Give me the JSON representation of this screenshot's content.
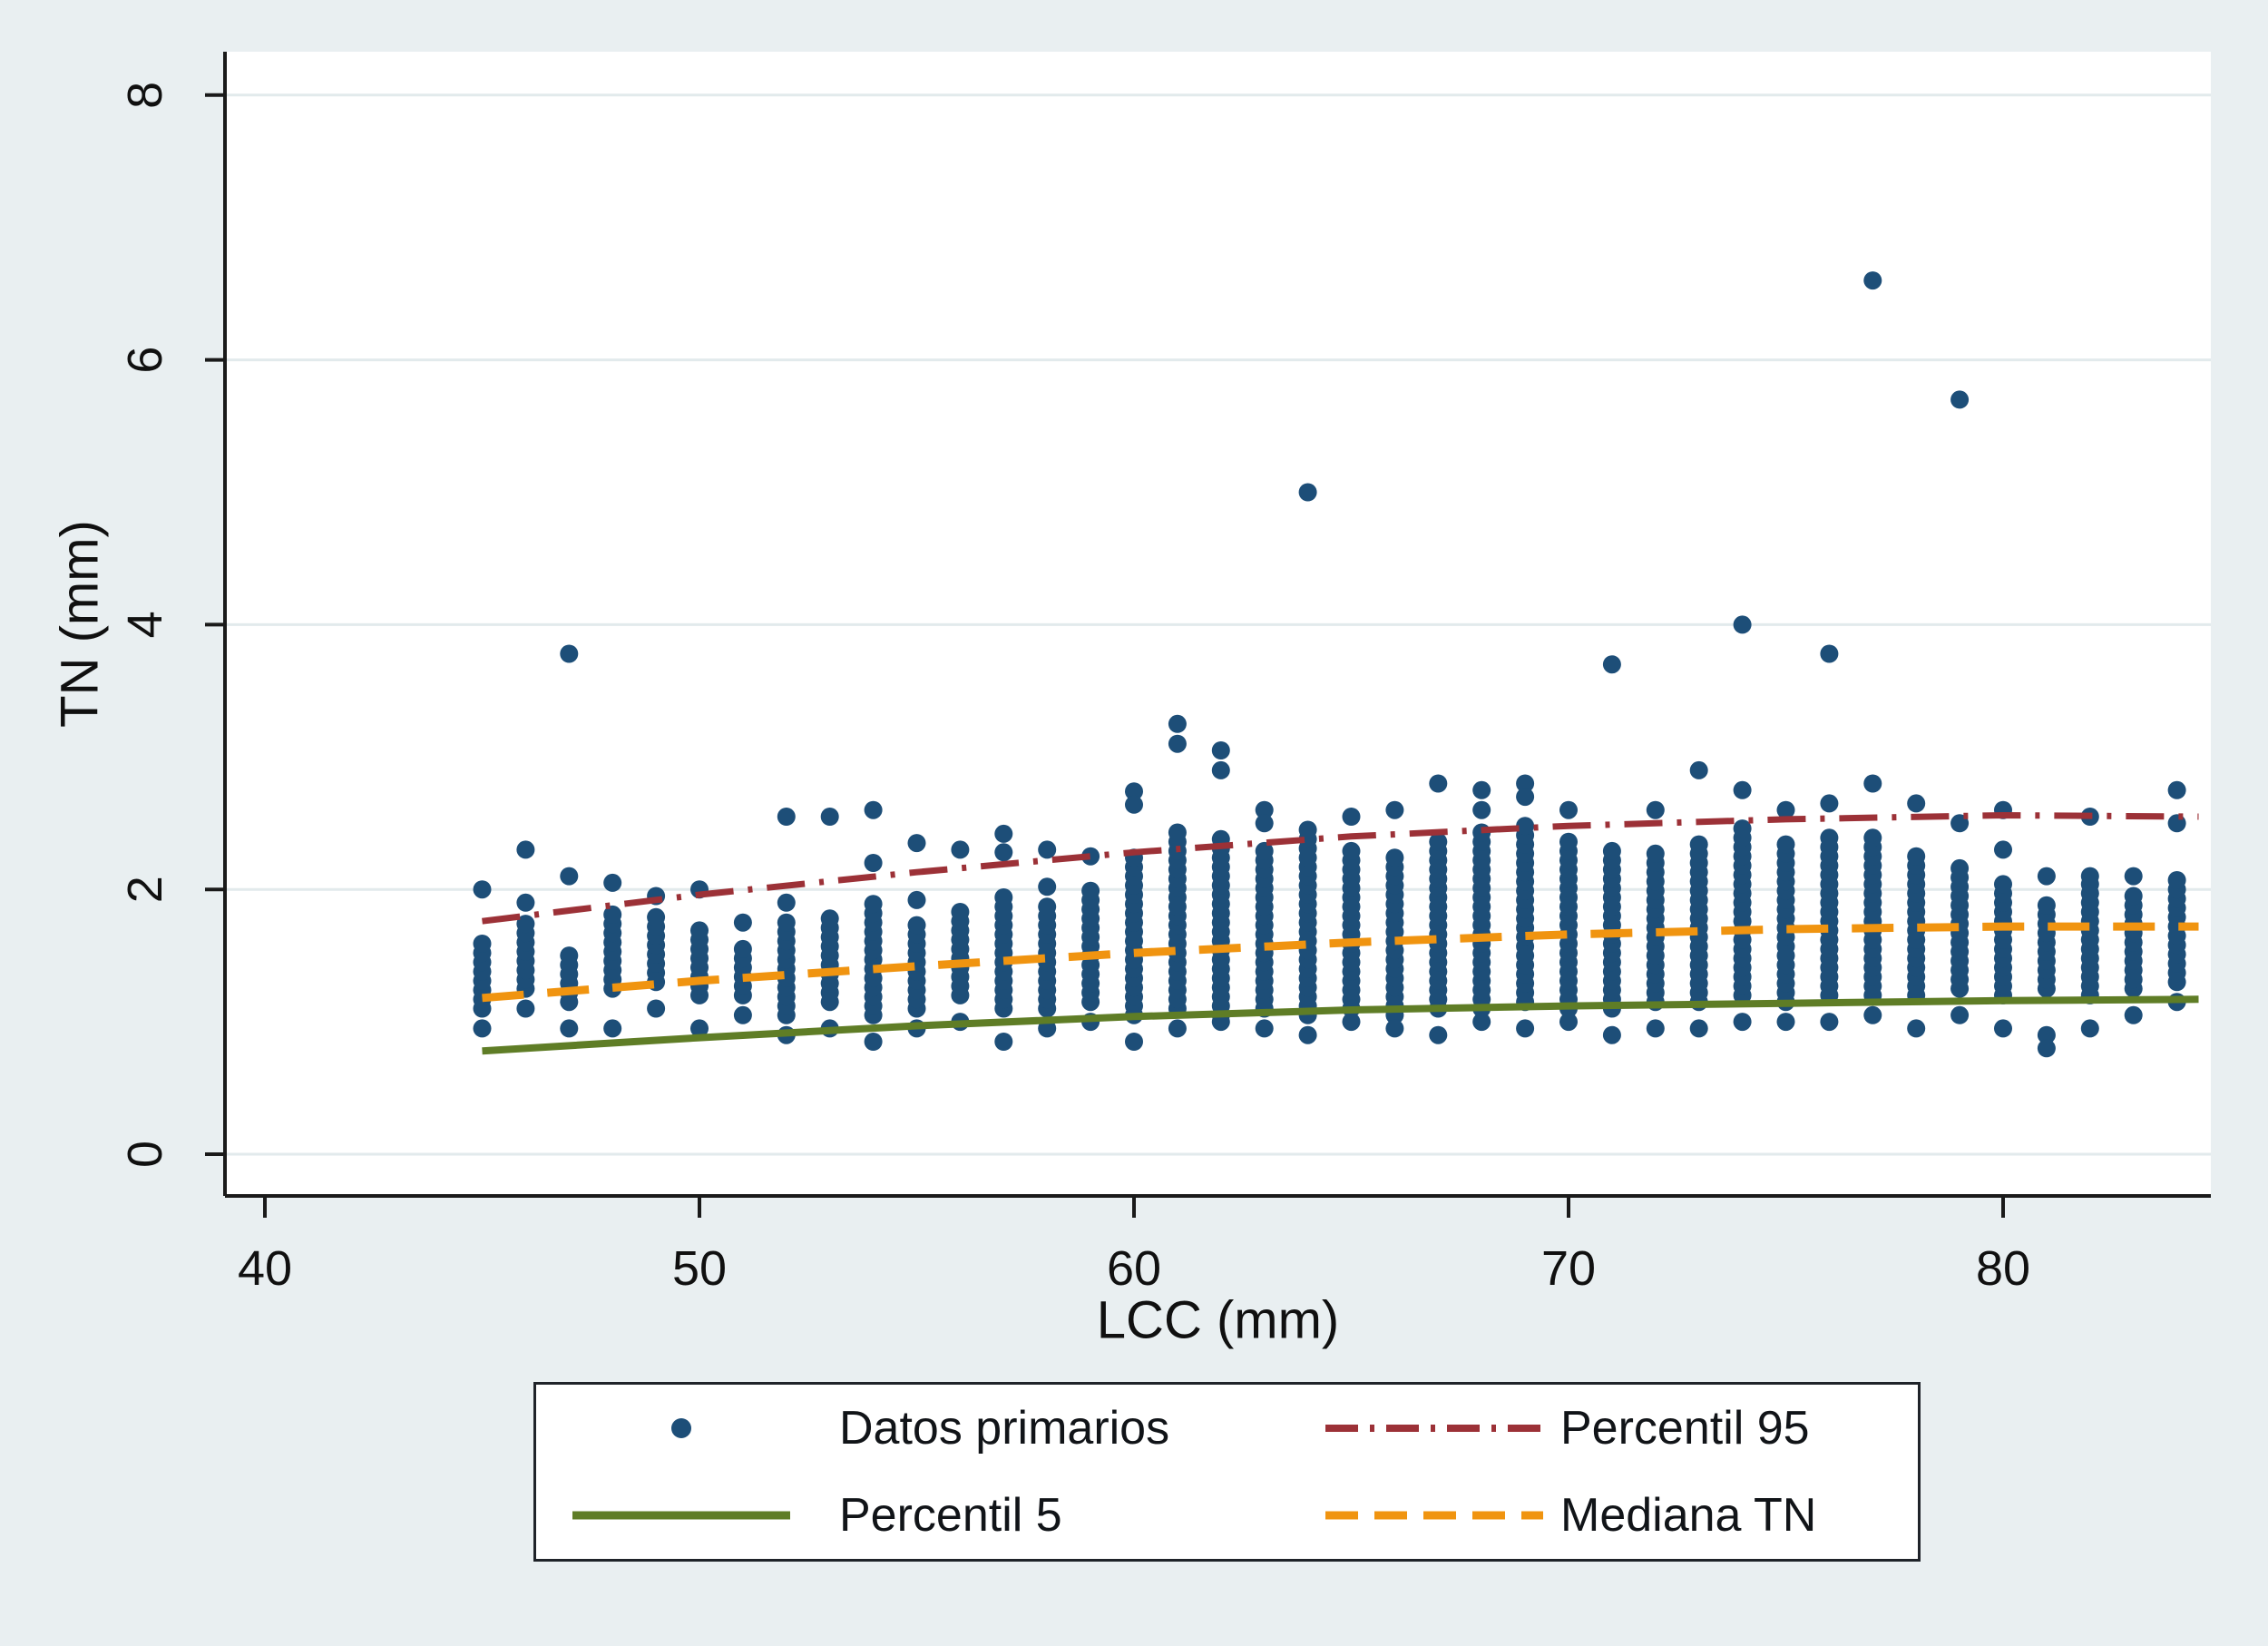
{
  "figure": {
    "background_color": "#e9eff1",
    "plot_background_color": "#ffffff",
    "gridline_color": "#e2eaec",
    "axis_color": "#1a1a1a",
    "text_color": "#101010"
  },
  "chart_data": {
    "type": "scatter",
    "title": "",
    "xlabel": "LCC (mm)",
    "ylabel": "TN (mm)",
    "xlim": [
      39.1,
      84.9
    ],
    "ylim": [
      -0.37,
      8.33
    ],
    "x_ticks": [
      40,
      50,
      60,
      70,
      80
    ],
    "y_ticks": [
      0,
      2,
      4,
      6,
      8
    ],
    "grid": "horizontal-light",
    "legend_position": "bottom-box",
    "marker_radius_px": 10,
    "series": [
      {
        "name": "Datos primarios",
        "type": "scatter",
        "color": "#1d4e78",
        "run_step": 0.07,
        "columns": [
          {
            "x": 45,
            "runs": [
              [
                1.1,
                1.6
              ]
            ],
            "pts": [
              2.0,
              0.95
            ]
          },
          {
            "x": 46,
            "runs": [
              [
                1.25,
                1.75
              ]
            ],
            "pts": [
              2.3,
              1.9,
              1.1
            ]
          },
          {
            "x": 47,
            "runs": [
              [
                1.15,
                1.55
              ]
            ],
            "pts": [
              3.78,
              2.1,
              0.95
            ]
          },
          {
            "x": 48,
            "runs": [
              [
                1.25,
                1.85
              ]
            ],
            "pts": [
              2.05,
              0.95
            ]
          },
          {
            "x": 49,
            "runs": [
              [
                1.3,
                1.8
              ]
            ],
            "pts": [
              1.95,
              1.1
            ]
          },
          {
            "x": 50,
            "runs": [
              [
                1.2,
                1.7
              ]
            ],
            "pts": [
              2.0,
              0.95
            ]
          },
          {
            "x": 51,
            "runs": [
              [
                1.2,
                1.6
              ]
            ],
            "pts": [
              1.75,
              1.05
            ]
          },
          {
            "x": 52,
            "runs": [
              [
                1.05,
                1.75
              ]
            ],
            "pts": [
              2.55,
              1.9,
              0.9
            ]
          },
          {
            "x": 53,
            "runs": [
              [
                1.15,
                1.8
              ]
            ],
            "pts": [
              2.55,
              0.95
            ]
          },
          {
            "x": 54,
            "runs": [
              [
                1.05,
                1.9
              ]
            ],
            "pts": [
              2.6,
              2.2,
              0.85
            ]
          },
          {
            "x": 55,
            "runs": [
              [
                1.1,
                1.75
              ]
            ],
            "pts": [
              2.35,
              1.92,
              0.95
            ]
          },
          {
            "x": 56,
            "runs": [
              [
                1.2,
                1.85
              ]
            ],
            "pts": [
              2.3,
              1.0
            ]
          },
          {
            "x": 57,
            "runs": [
              [
                1.1,
                2.0
              ]
            ],
            "pts": [
              2.42,
              2.28,
              0.85
            ]
          },
          {
            "x": 58,
            "runs": [
              [
                1.1,
                1.9
              ]
            ],
            "pts": [
              2.3,
              2.02,
              0.95
            ]
          },
          {
            "x": 59,
            "runs": [
              [
                1.15,
                2.0
              ]
            ],
            "pts": [
              2.25,
              1.0
            ]
          },
          {
            "x": 60,
            "runs": [
              [
                1.05,
                2.25
              ]
            ],
            "pts": [
              2.74,
              2.64,
              0.85
            ]
          },
          {
            "x": 61,
            "runs": [
              [
                1.1,
                2.45
              ]
            ],
            "pts": [
              3.25,
              3.1,
              0.95
            ]
          },
          {
            "x": 62,
            "runs": [
              [
                1.05,
                2.4
              ]
            ],
            "pts": [
              3.05,
              2.9,
              1.0
            ]
          },
          {
            "x": 63,
            "runs": [
              [
                1.1,
                2.3
              ]
            ],
            "pts": [
              2.6,
              2.5,
              0.95
            ]
          },
          {
            "x": 64,
            "runs": [
              [
                1.05,
                2.45
              ]
            ],
            "pts": [
              5.0,
              0.9
            ]
          },
          {
            "x": 65,
            "runs": [
              [
                1.1,
                2.35
              ]
            ],
            "pts": [
              2.55,
              1.0
            ]
          },
          {
            "x": 66,
            "runs": [
              [
                1.05,
                2.3
              ]
            ],
            "pts": [
              2.6,
              0.95
            ]
          },
          {
            "x": 67,
            "runs": [
              [
                1.1,
                2.4
              ]
            ],
            "pts": [
              2.8,
              0.9
            ]
          },
          {
            "x": 68,
            "runs": [
              [
                1.1,
                2.45
              ]
            ],
            "pts": [
              2.75,
              2.6,
              1.0
            ]
          },
          {
            "x": 69,
            "runs": [
              [
                1.15,
                2.5
              ]
            ],
            "pts": [
              2.8,
              2.7,
              0.95
            ]
          },
          {
            "x": 70,
            "runs": [
              [
                1.1,
                2.4
              ]
            ],
            "pts": [
              2.6,
              1.0
            ]
          },
          {
            "x": 71,
            "runs": [
              [
                1.1,
                2.35
              ]
            ],
            "pts": [
              3.7,
              0.9
            ]
          },
          {
            "x": 72,
            "runs": [
              [
                1.15,
                2.3
              ]
            ],
            "pts": [
              2.6,
              0.95
            ]
          },
          {
            "x": 73,
            "runs": [
              [
                1.15,
                2.4
              ]
            ],
            "pts": [
              2.9,
              0.95
            ]
          },
          {
            "x": 74,
            "runs": [
              [
                1.2,
                2.5
              ]
            ],
            "pts": [
              4.0,
              2.75,
              1.0
            ]
          },
          {
            "x": 75,
            "runs": [
              [
                1.15,
                2.35
              ]
            ],
            "pts": [
              2.6,
              1.0
            ]
          },
          {
            "x": 76,
            "runs": [
              [
                1.2,
                2.4
              ]
            ],
            "pts": [
              3.78,
              2.65,
              1.0
            ]
          },
          {
            "x": 77,
            "runs": [
              [
                1.2,
                2.45
              ]
            ],
            "pts": [
              6.6,
              2.8,
              1.05
            ]
          },
          {
            "x": 78,
            "runs": [
              [
                1.2,
                2.3
              ]
            ],
            "pts": [
              2.65,
              0.95
            ]
          },
          {
            "x": 79,
            "runs": [
              [
                1.25,
                2.2
              ]
            ],
            "pts": [
              5.7,
              2.5,
              1.05
            ]
          },
          {
            "x": 80,
            "runs": [
              [
                1.2,
                2.1
              ]
            ],
            "pts": [
              2.6,
              2.3,
              0.95
            ]
          },
          {
            "x": 81,
            "runs": [
              [
                1.25,
                1.9
              ]
            ],
            "pts": [
              2.1,
              0.9,
              0.8
            ]
          },
          {
            "x": 82,
            "runs": [
              [
                1.2,
                2.05
              ]
            ],
            "pts": [
              2.55,
              2.1,
              0.95
            ]
          },
          {
            "x": 83,
            "runs": [
              [
                1.25,
                1.95
              ]
            ],
            "pts": [
              2.1,
              1.05
            ]
          },
          {
            "x": 84,
            "runs": [
              [
                1.3,
                2.1
              ]
            ],
            "pts": [
              2.75,
              2.5,
              1.15
            ]
          }
        ]
      },
      {
        "name": "Percentil 95",
        "type": "line",
        "style": "dashdot",
        "color": "#9c3137",
        "width": 7,
        "points": [
          [
            45,
            1.76
          ],
          [
            50,
            1.96
          ],
          [
            55,
            2.13
          ],
          [
            60,
            2.28
          ],
          [
            65,
            2.4
          ],
          [
            70,
            2.48
          ],
          [
            75,
            2.53
          ],
          [
            80,
            2.56
          ],
          [
            84.5,
            2.55
          ]
        ]
      },
      {
        "name": "Percentil 5",
        "type": "line",
        "style": "solid",
        "color": "#5f7d26",
        "width": 8,
        "points": [
          [
            45,
            0.78
          ],
          [
            50,
            0.88
          ],
          [
            55,
            0.97
          ],
          [
            60,
            1.04
          ],
          [
            65,
            1.09
          ],
          [
            70,
            1.12
          ],
          [
            75,
            1.14
          ],
          [
            80,
            1.16
          ],
          [
            84.5,
            1.17
          ]
        ]
      },
      {
        "name": "Mediana TN",
        "type": "line",
        "style": "dashed",
        "color": "#f09410",
        "width": 9,
        "points": [
          [
            45,
            1.18
          ],
          [
            50,
            1.31
          ],
          [
            55,
            1.42
          ],
          [
            60,
            1.52
          ],
          [
            65,
            1.6
          ],
          [
            70,
            1.66
          ],
          [
            75,
            1.7
          ],
          [
            80,
            1.72
          ],
          [
            84.5,
            1.72
          ]
        ]
      }
    ]
  }
}
